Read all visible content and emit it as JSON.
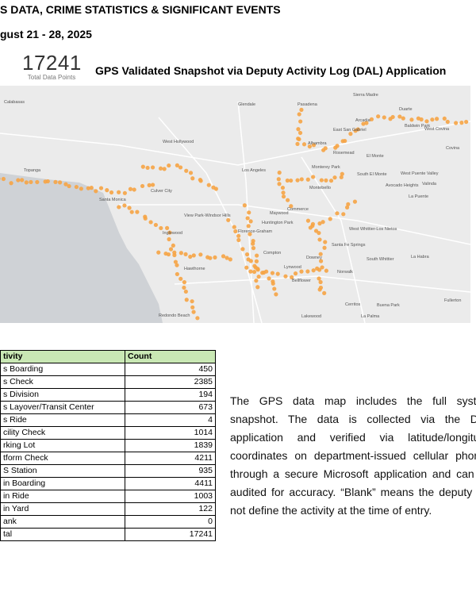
{
  "header": {
    "title": "S DATA, CRIME STATISTICS & SIGNIFICANT EVENTS",
    "date": "gust 21 - 28, 2025"
  },
  "stat": {
    "value": 17241,
    "label": "Total Data Points"
  },
  "map": {
    "title": "GPS Validated Snapshot via Deputy Activity Log (DAL) Application",
    "labels": [
      "Calabasas",
      "Topanga",
      "Glendale",
      "Pasadena",
      "Sierra Madre",
      "Arcadia",
      "Duarte",
      "East San Gabriel",
      "Alhambra",
      "Rosemead",
      "El Monte",
      "Baldwin Park",
      "West Covina",
      "Covina",
      "West Hollywood",
      "Los Angeles",
      "Monterey Park",
      "South El Monte",
      "West Puente Valley",
      "Culver City",
      "Santa Monica",
      "Montebello",
      "Commerce",
      "Maywood",
      "View Park-Windsor Hills",
      "Huntington Park",
      "Florence-Graham",
      "Inglewood",
      "Lynwood",
      "Hawthorne",
      "Compton",
      "Downey",
      "Norwalk",
      "Santa Fe Springs",
      "West Whittier-Los Nietos",
      "South Whittier",
      "La Habra",
      "Bellflower",
      "Cerritos",
      "Buena Park",
      "Fullerton",
      "Lakewood",
      "La Palma",
      "Redondo Beach",
      "La Puente",
      "Avocado Heights",
      "Valinda"
    ]
  },
  "table": {
    "columns": [
      "tivity",
      "Count"
    ],
    "rows": [
      [
        "s Boarding",
        450
      ],
      [
        "s Check",
        2385
      ],
      [
        "s Division",
        194
      ],
      [
        "s Layover/Transit Center",
        673
      ],
      [
        "s Ride",
        4
      ],
      [
        "cility Check",
        1014
      ],
      [
        "rking Lot",
        1839
      ],
      [
        "tform Check",
        4211
      ],
      [
        "S Station",
        935
      ],
      [
        "in Boarding",
        4411
      ],
      [
        "in Ride",
        1003
      ],
      [
        "in Yard",
        122
      ],
      [
        "ank",
        0
      ],
      [
        "tal",
        17241
      ]
    ]
  },
  "paragraph": "The GPS data map includes the full system snapshot. The data is collected via the DAL application and verified via latitude/longitude coordinates on department-issued cellular phones through a secure Microsoft application and can be audited for accuracy. “Blank” means the deputy did not define the activity at the time of entry."
}
